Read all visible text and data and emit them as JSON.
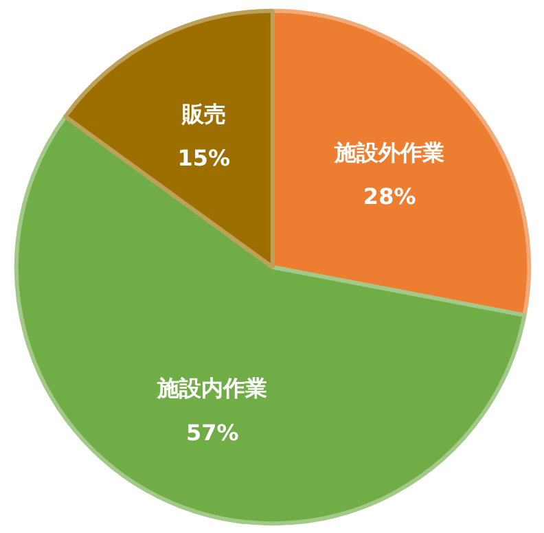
{
  "chart_data": {
    "type": "pie",
    "categories": [
      "施設外作業",
      "施設内作業",
      "販売"
    ],
    "values": [
      28,
      57,
      15
    ],
    "colors": [
      "#ed7d31",
      "#70ad47",
      "#9c6f00"
    ],
    "value_labels": [
      "28%",
      "57%",
      "15%"
    ]
  }
}
